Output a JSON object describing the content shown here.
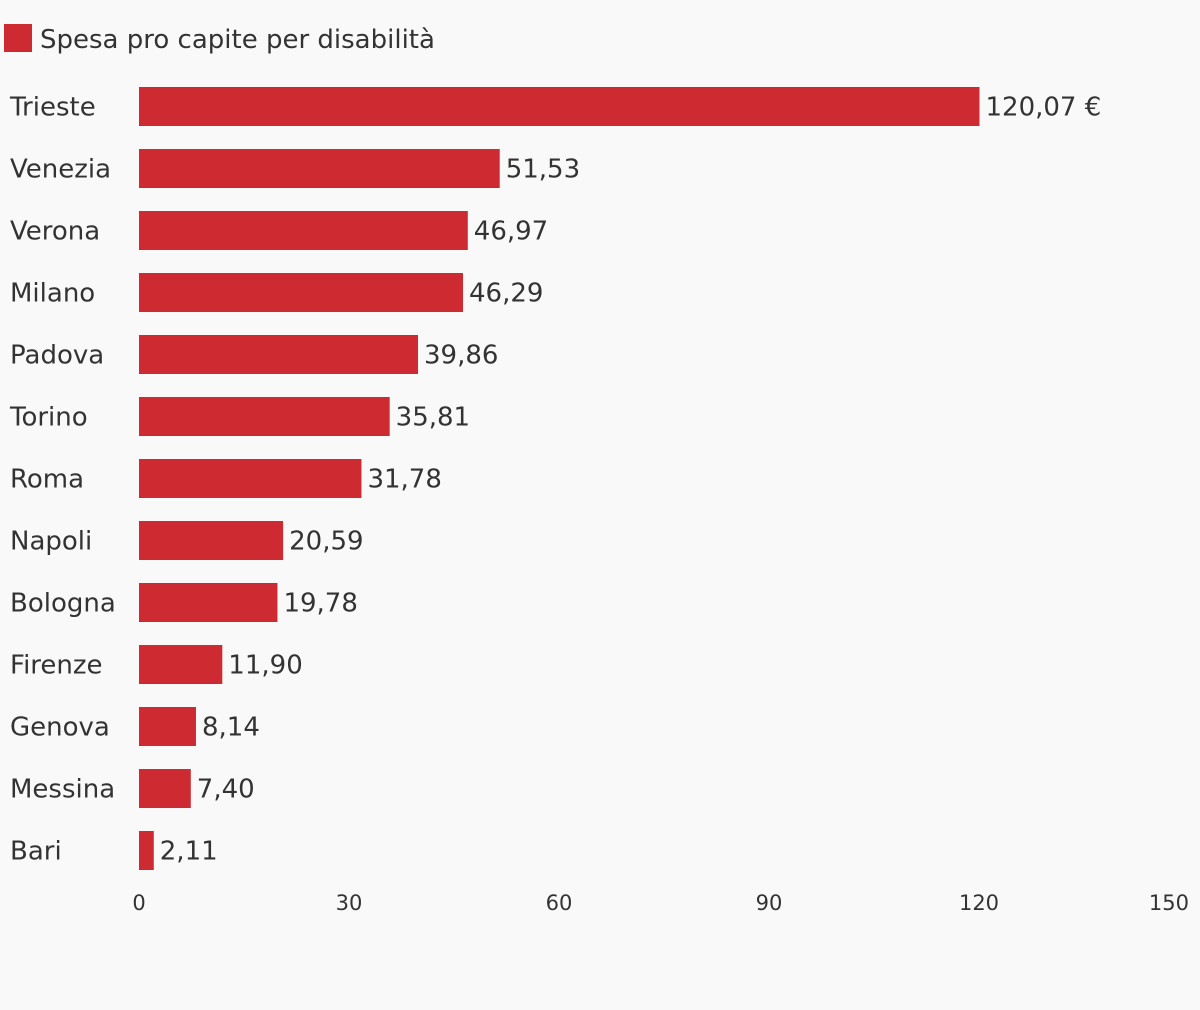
{
  "chart_data": {
    "type": "bar",
    "orientation": "horizontal",
    "title": "",
    "xlabel": "",
    "ylabel": "",
    "legend": {
      "position": "top-left",
      "entries": [
        "Spesa pro capite per disabilità"
      ]
    },
    "categories": [
      "Trieste",
      "Venezia",
      "Verona",
      "Milano",
      "Padova",
      "Torino",
      "Roma",
      "Napoli",
      "Bologna",
      "Firenze",
      "Genova",
      "Messina",
      "Bari"
    ],
    "series": [
      {
        "name": "Spesa pro capite per disabilità",
        "color": "#cd2a31",
        "values": [
          120.07,
          51.53,
          46.97,
          46.29,
          39.86,
          35.81,
          31.78,
          20.59,
          19.78,
          11.9,
          8.14,
          7.4,
          2.11
        ],
        "labels": [
          "120,07 €",
          "51,53",
          "46,97",
          "46,29",
          "39,86",
          "35,81",
          "31,78",
          "20,59",
          "19,78",
          "11,90",
          "8,14",
          "7,40",
          "2,11"
        ]
      }
    ],
    "xlim": [
      0,
      150
    ],
    "xticks": [
      0,
      30,
      60,
      90,
      120,
      150
    ],
    "xtick_labels": [
      "0",
      "30",
      "60",
      "90",
      "120",
      "150"
    ],
    "grid": false
  }
}
